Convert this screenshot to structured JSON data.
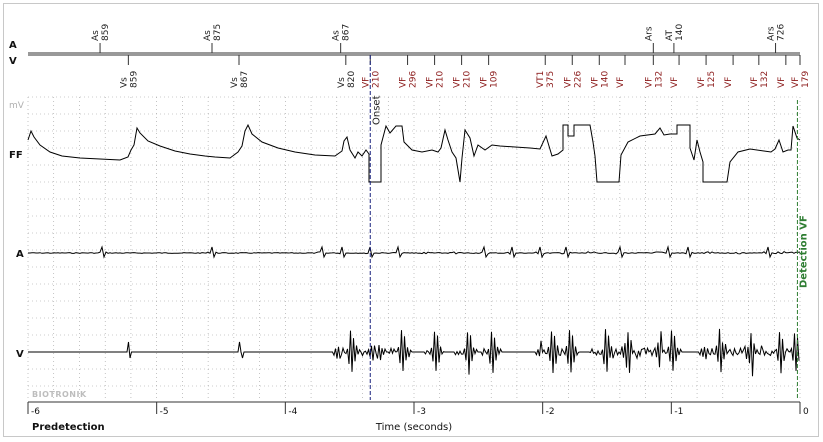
{
  "channels": {
    "a_marker": "A",
    "v_marker": "V",
    "ff": "FF",
    "a": "A",
    "v": "V"
  },
  "unit_label": "mV",
  "brand": "BIOTRONIK",
  "onset_label": "Onset",
  "detection_label": "Detection VF",
  "time_axis": {
    "label": "Time (seconds)",
    "left_label": "Predetection",
    "ticks": [
      "-6",
      "-5",
      "-4",
      "-3",
      "-2",
      "-1",
      "0"
    ],
    "range": [
      -6,
      0
    ]
  },
  "colors": {
    "atrial_markers": "#222222",
    "ventricular_markers": "#8b1a1a",
    "onset_line": "#1a237e",
    "detection_line": "#2e7d32",
    "trace": "#000000",
    "grid": "#9e9e9e"
  },
  "onset_time": -3.34,
  "detection_time": -0.02,
  "atrial_markers": [
    {
      "t": -5.44,
      "label": "As",
      "value": "859"
    },
    {
      "t": -4.57,
      "label": "As",
      "value": "875"
    },
    {
      "t": -3.57,
      "label": "As",
      "value": "867"
    },
    {
      "t": -1.14,
      "label": "Ars",
      "value": ""
    },
    {
      "t": -0.98,
      "label": "AT",
      "value": "140"
    },
    {
      "t": -0.19,
      "label": "Ars",
      "value": "726"
    }
  ],
  "ventricular_markers": [
    {
      "t": -5.22,
      "label": "Vs",
      "value": "859",
      "type": "sense"
    },
    {
      "t": -4.36,
      "label": "Vs",
      "value": "867",
      "type": "sense"
    },
    {
      "t": -3.53,
      "label": "Vs",
      "value": "820",
      "type": "sense"
    },
    {
      "t": -3.34,
      "label": "VF",
      "value": "210",
      "type": "fib"
    },
    {
      "t": -3.05,
      "label": "VF",
      "value": "296",
      "type": "fib"
    },
    {
      "t": -2.84,
      "label": "VF",
      "value": "210",
      "type": "fib"
    },
    {
      "t": -2.63,
      "label": "VF",
      "value": "210",
      "type": "fib"
    },
    {
      "t": -2.42,
      "label": "VF",
      "value": "109",
      "type": "fib"
    },
    {
      "t": -1.98,
      "label": "VT1",
      "value": "375",
      "type": "fib"
    },
    {
      "t": -1.77,
      "label": "VF",
      "value": "226",
      "type": "fib"
    },
    {
      "t": -1.56,
      "label": "VF",
      "value": "140",
      "type": "fib"
    },
    {
      "t": -1.36,
      "label": "VF",
      "value": "",
      "type": "fib"
    },
    {
      "t": -1.14,
      "label": "VF",
      "value": "132",
      "type": "fib"
    },
    {
      "t": -0.94,
      "label": "VF",
      "value": "",
      "type": "fib"
    },
    {
      "t": -0.73,
      "label": "VF",
      "value": "125",
      "type": "fib"
    },
    {
      "t": -0.52,
      "label": "VF",
      "value": "",
      "type": "fib"
    },
    {
      "t": -0.32,
      "label": "VF",
      "value": "132",
      "type": "fib"
    },
    {
      "t": -0.11,
      "label": "VF",
      "value": "",
      "type": "fib"
    },
    {
      "t": 0.0,
      "label": "VF",
      "value": "179",
      "type": "fib"
    }
  ]
}
